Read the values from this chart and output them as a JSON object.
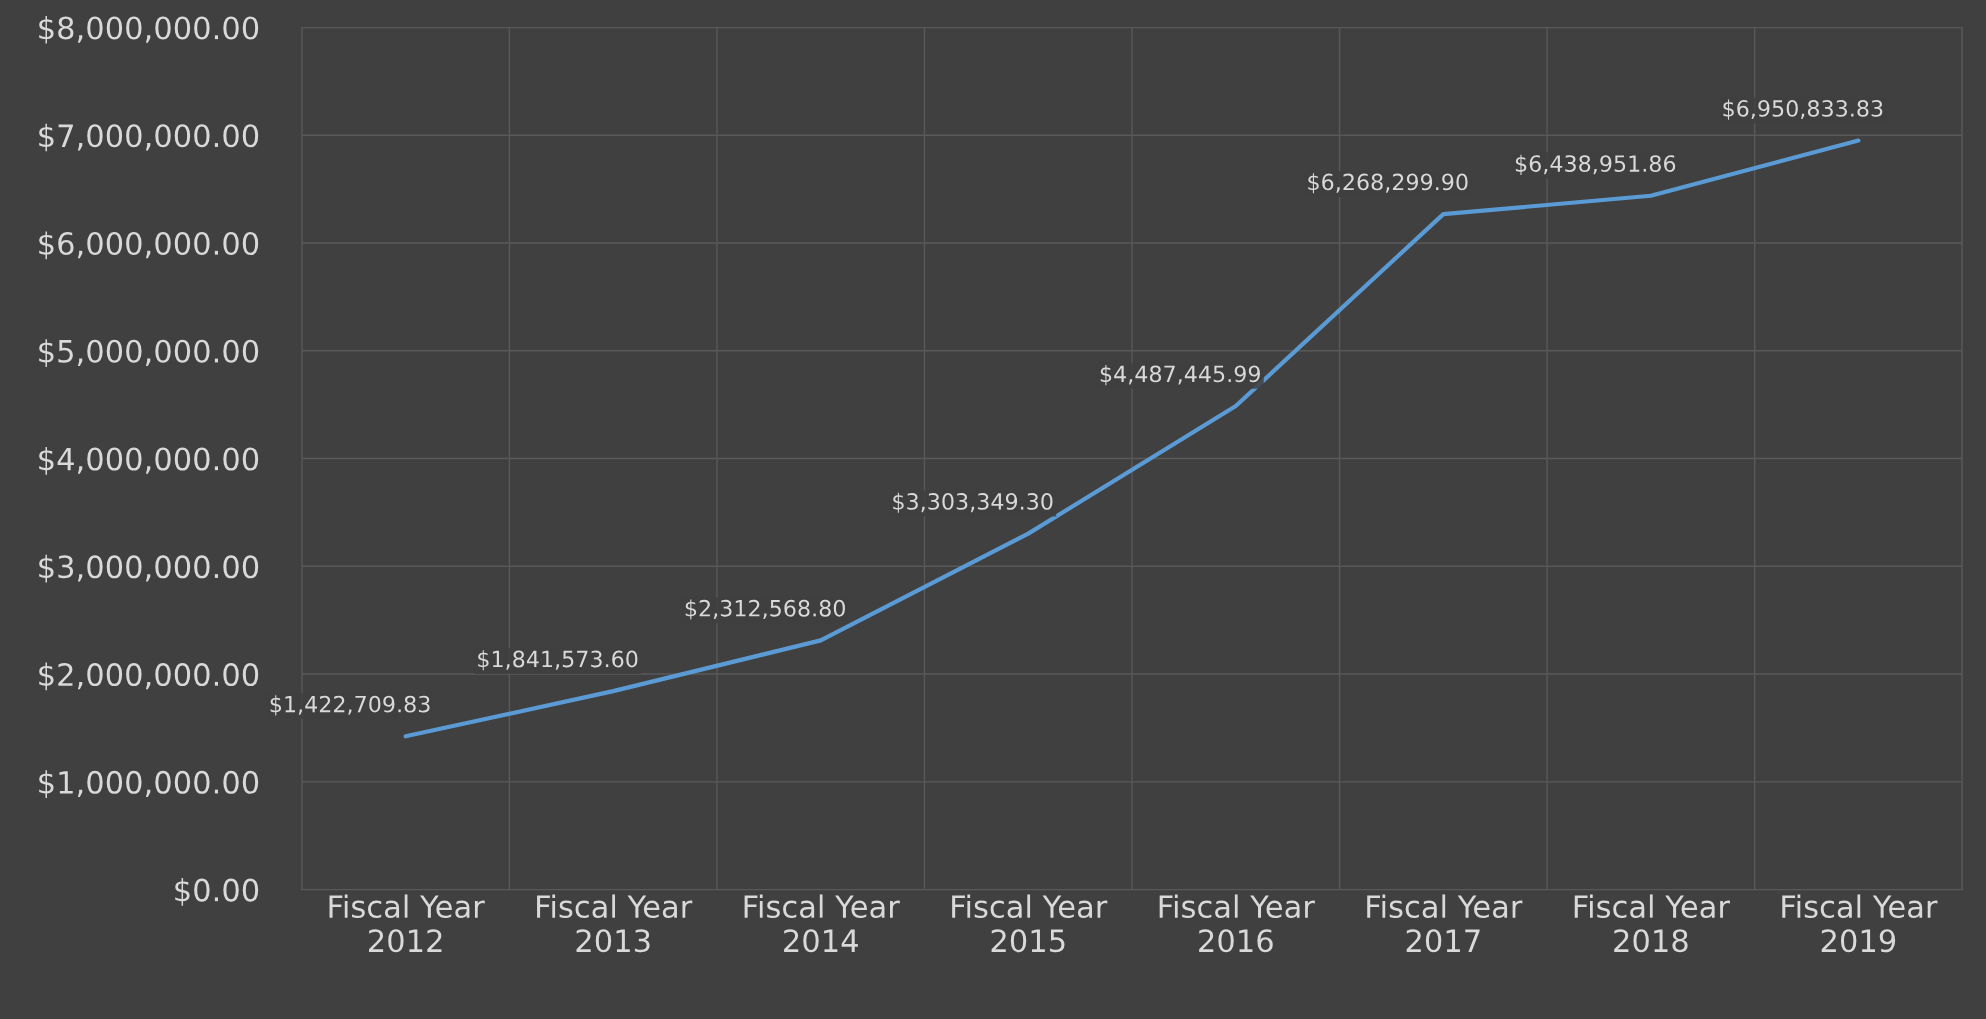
{
  "chart_data": {
    "type": "line",
    "categories": [
      "Fiscal Year\n2012",
      "Fiscal Year\n2013",
      "Fiscal Year\n2014",
      "Fiscal Year\n2015",
      "Fiscal Year\n2016",
      "Fiscal Year\n2017",
      "Fiscal Year\n2018",
      "Fiscal Year\n2019"
    ],
    "series": [
      {
        "color": "#5b9bd5",
        "values": [
          1422709.83,
          1841573.6,
          2312568.8,
          3303349.3,
          4487445.99,
          6268299.9,
          6438951.86,
          6950833.83
        ],
        "value_labels": [
          "$1,422,709.83",
          "$1,841,573.60",
          "$2,312,568.80",
          "$3,303,349.30",
          "$4,487,445.99",
          "$6,268,299.90",
          "$6,438,951.86",
          "$6,950,833.83"
        ]
      }
    ],
    "ylim": [
      0,
      8000000
    ],
    "yticks": [
      {
        "value": 0,
        "label": "$0.00"
      },
      {
        "value": 1000000,
        "label": "$1,000,000.00"
      },
      {
        "value": 2000000,
        "label": "$2,000,000.00"
      },
      {
        "value": 3000000,
        "label": "$3,000,000.00"
      },
      {
        "value": 4000000,
        "label": "$4,000,000.00"
      },
      {
        "value": 5000000,
        "label": "$5,000,000.00"
      },
      {
        "value": 6000000,
        "label": "$6,000,000.00"
      },
      {
        "value": 7000000,
        "label": "$7,000,000.00"
      },
      {
        "value": 8000000,
        "label": "$8,000,000.00"
      }
    ],
    "grid": true,
    "marker": "none",
    "line_style": "solid"
  }
}
